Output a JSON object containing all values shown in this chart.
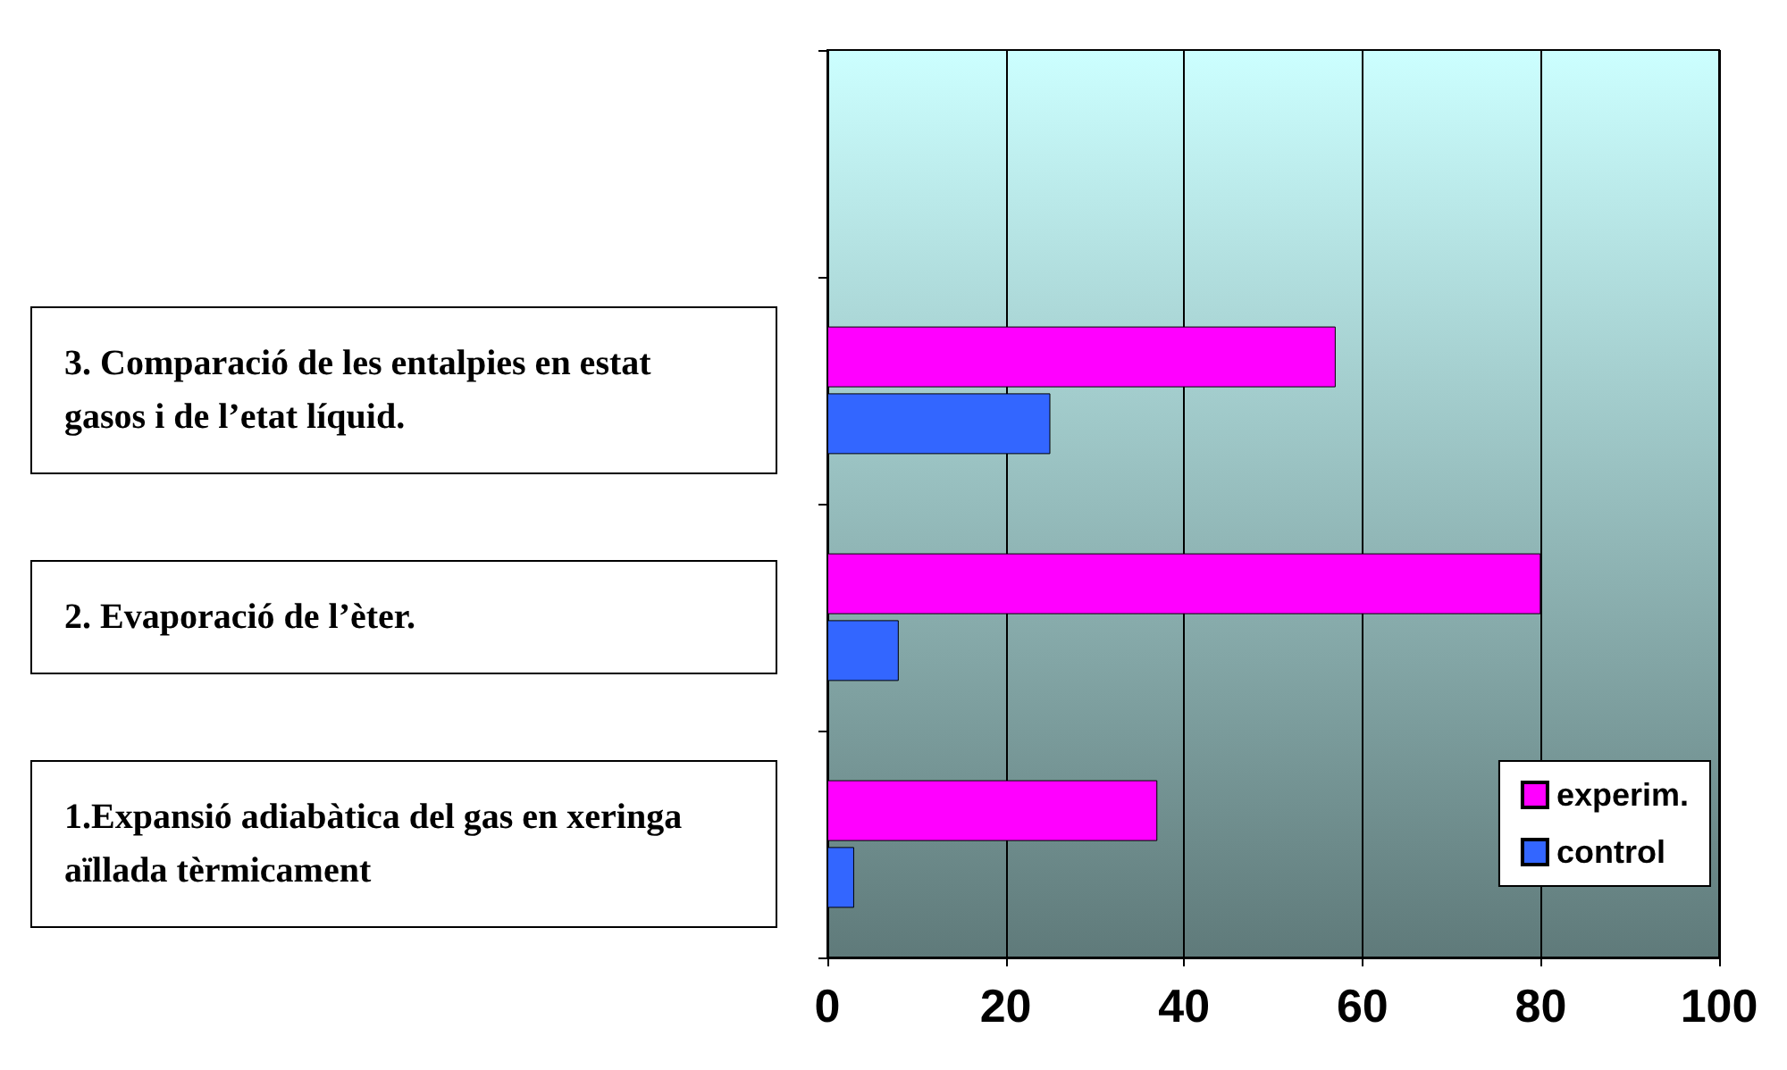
{
  "chart_data": {
    "type": "bar",
    "orientation": "horizontal",
    "categories": [
      null,
      "3. Comparació de les entalpies en estat gasos i de l’etat líquid.",
      "2. Evaporació de l’èter.",
      "1.Expansió adiabàtica del gas en xeringa aïllada tèrmicament"
    ],
    "series": [
      {
        "name": "experim.",
        "color": "#ff00ff",
        "values": [
          null,
          57,
          80,
          37
        ]
      },
      {
        "name": "control",
        "color": "#3366ff",
        "values": [
          null,
          25,
          8,
          3
        ]
      }
    ],
    "xlim": [
      0,
      100
    ],
    "xticks": [
      0,
      20,
      40,
      60,
      80,
      100
    ],
    "grid": "x",
    "legend": "bottom right"
  }
}
